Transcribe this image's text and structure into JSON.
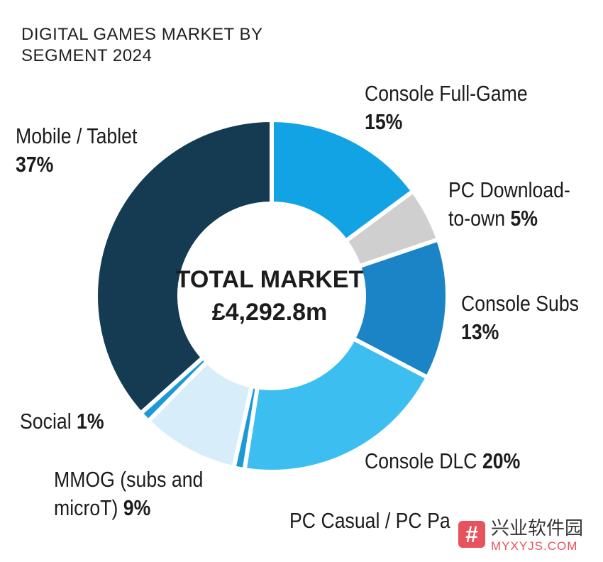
{
  "chart_data": {
    "type": "pie",
    "variant": "donut",
    "title_lines": [
      "DIGITAL GAMES MARKET BY",
      "SEGMENT 2024"
    ],
    "center_label": "TOTAL MARKET",
    "center_value": "£4,292.8m",
    "slices": [
      {
        "name": "Console Full-Game",
        "pct_label": "15%",
        "value": 15,
        "color": "#12a3e4",
        "label_lines": [
          "Console Full-Game"
        ]
      },
      {
        "name": "PC Download-to-own",
        "pct_label": "5%",
        "value": 5,
        "color": "#cfcfcf",
        "label_lines": [
          "PC Download-",
          "to-own"
        ]
      },
      {
        "name": "Console Subs",
        "pct_label": "13%",
        "value": 13,
        "color": "#1a84c6",
        "label_lines": [
          "Console Subs"
        ]
      },
      {
        "name": "Console DLC",
        "pct_label": "20%",
        "value": 20,
        "color": "#3cbff0",
        "label_lines": [
          "Console DLC"
        ]
      },
      {
        "name": "PC Casual / PC Pa",
        "pct_label": "",
        "value": 1,
        "color": "#1b9ad8",
        "label_lines": [
          "PC Casual / PC Pa"
        ]
      },
      {
        "name": "MMOG (subs and microT)",
        "pct_label": "9%",
        "value": 9,
        "color": "#d8edfa",
        "label_lines": [
          "MMOG (subs and",
          "microT)"
        ]
      },
      {
        "name": "Social",
        "pct_label": "1%",
        "value": 1,
        "color": "#1b9ad8",
        "label_lines": [
          "Social"
        ]
      },
      {
        "name": "Mobile / Tablet",
        "pct_label": "37%",
        "value": 37,
        "color": "#143b52",
        "label_lines": [
          "Mobile / Tablet"
        ]
      }
    ]
  },
  "watermark": {
    "glyph": "#",
    "cn": "兴业软件园",
    "en": "MYXYJS.COM"
  }
}
